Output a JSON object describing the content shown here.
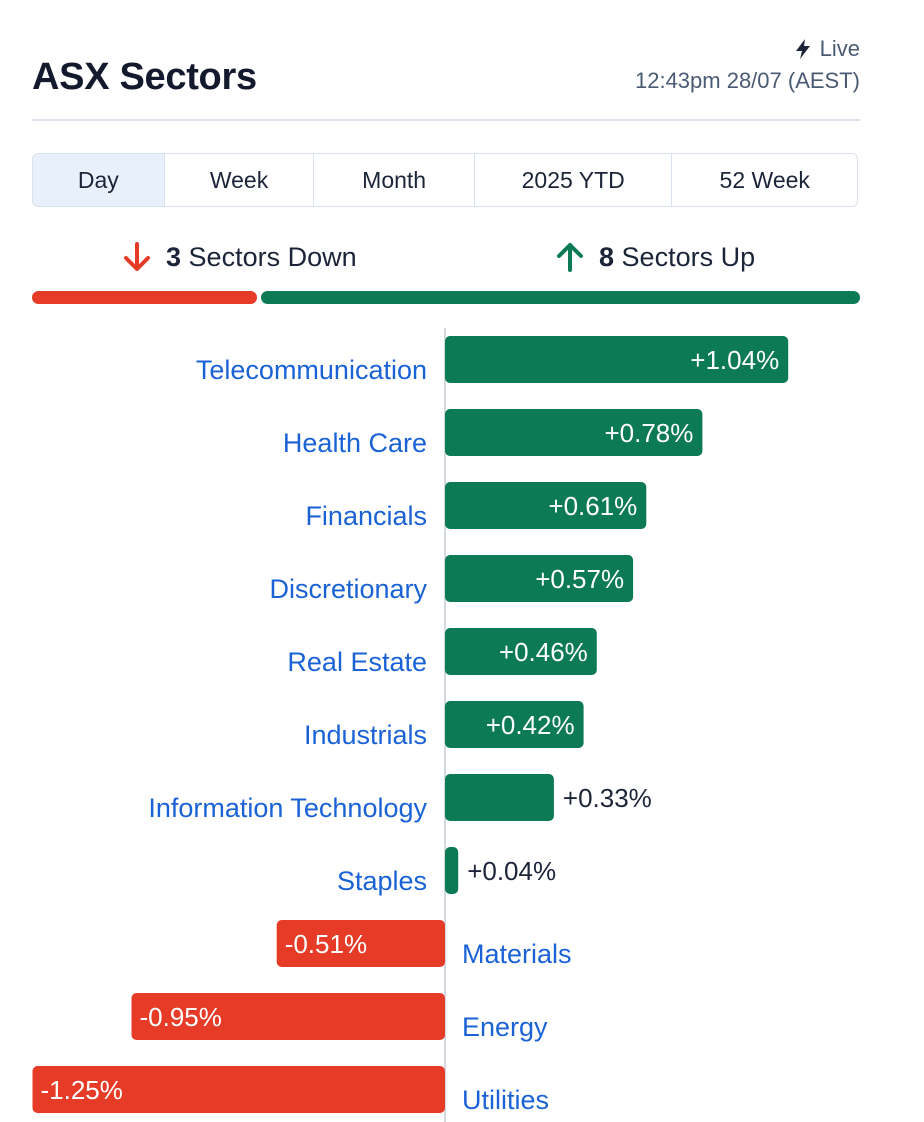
{
  "header": {
    "title": "ASX Sectors",
    "live_label": "Live",
    "timestamp": "12:43pm 28/07 (AEST)"
  },
  "tabs": [
    {
      "label": "Day",
      "active": true
    },
    {
      "label": "Week",
      "active": false
    },
    {
      "label": "Month",
      "active": false
    },
    {
      "label": "2025 YTD",
      "active": false
    },
    {
      "label": "52 Week",
      "active": false
    }
  ],
  "summary": {
    "down_count": "3",
    "down_label": "Sectors Down",
    "up_count": "8",
    "up_label": "Sectors Up"
  },
  "colors": {
    "up": "#0b7a55",
    "down": "#e53b27",
    "label": "#1a62d6",
    "value_inside": "#ffffff",
    "value_outside": "#1b2438"
  },
  "chart_data": {
    "type": "bar",
    "orientation": "horizontal",
    "categories": [
      "Telecommunication",
      "Health Care",
      "Financials",
      "Discretionary",
      "Real Estate",
      "Industrials",
      "Information Technology",
      "Staples",
      "Materials",
      "Energy",
      "Utilities"
    ],
    "values": [
      1.04,
      0.78,
      0.61,
      0.57,
      0.46,
      0.42,
      0.33,
      0.04,
      -0.51,
      -0.95,
      -1.25
    ],
    "value_labels": [
      "+1.04%",
      "+0.78%",
      "+0.61%",
      "+0.57%",
      "+0.46%",
      "+0.42%",
      "+0.33%",
      "+0.04%",
      "-0.51%",
      "-0.95%",
      "-1.25%"
    ],
    "unit": "%"
  }
}
